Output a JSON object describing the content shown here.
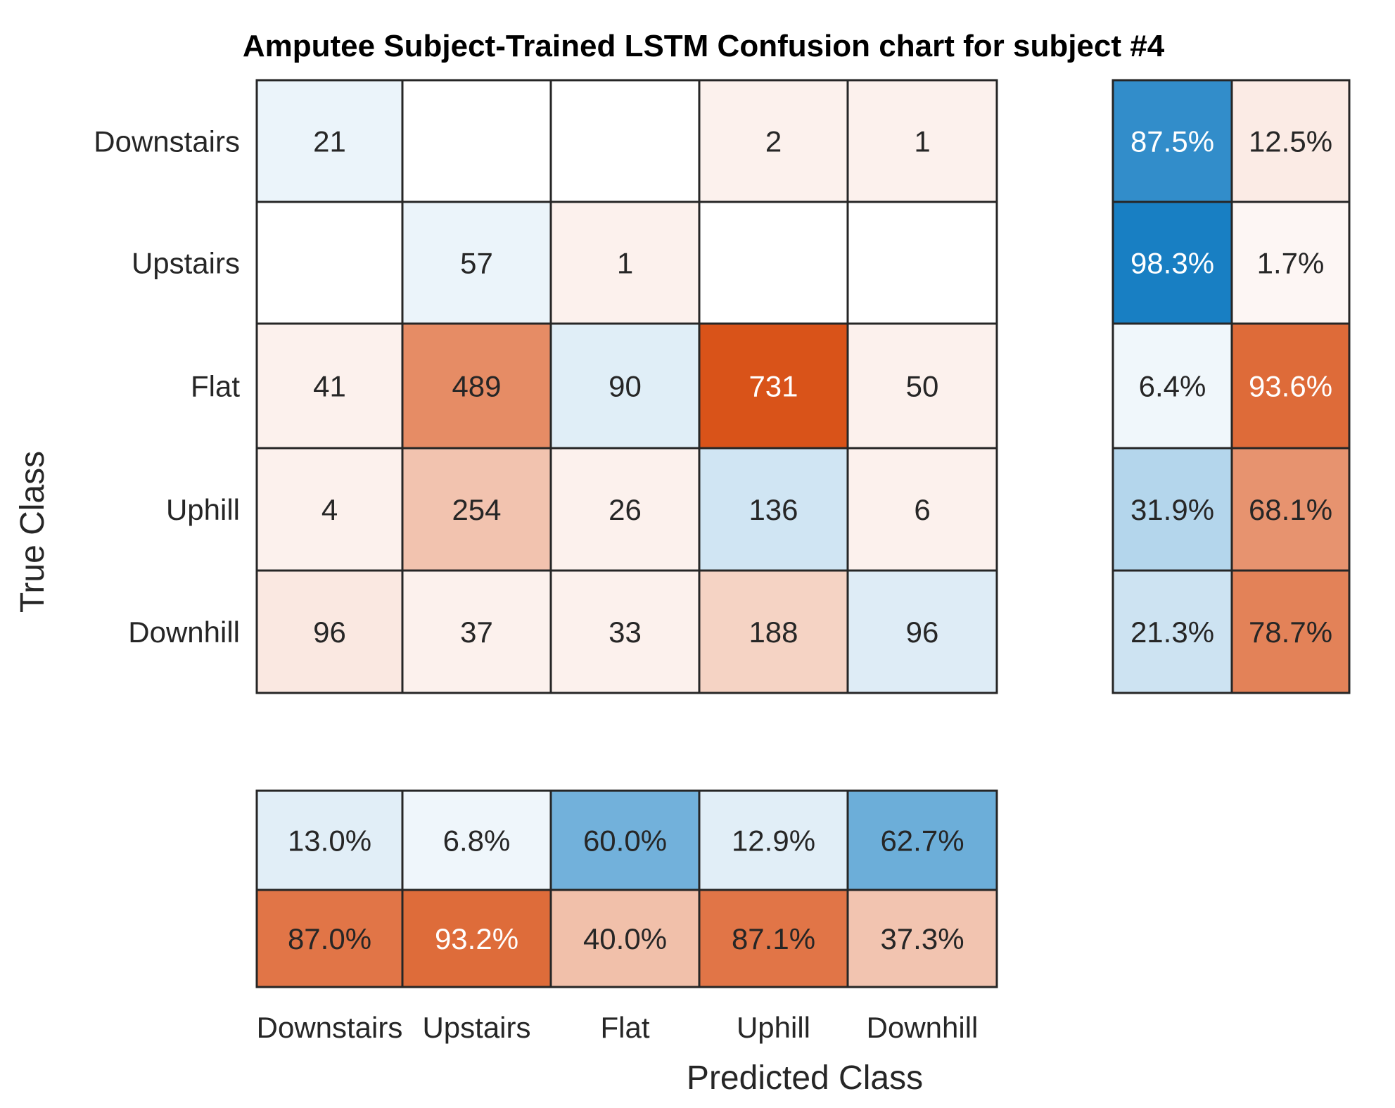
{
  "chart_data": {
    "type": "heatmap",
    "title": "Amputee Subject-Trained LSTM Confusion chart for subject #4",
    "xlabel": "Predicted Class",
    "ylabel": "True Class",
    "classes": [
      "Downstairs",
      "Upstairs",
      "Flat",
      "Uphill",
      "Downhill"
    ],
    "matrix": [
      [
        21,
        0,
        0,
        2,
        1
      ],
      [
        0,
        57,
        1,
        0,
        0
      ],
      [
        41,
        489,
        90,
        731,
        50
      ],
      [
        4,
        254,
        26,
        136,
        6
      ],
      [
        96,
        37,
        33,
        188,
        96
      ]
    ],
    "row_summary": [
      [
        "87.5%",
        "12.5%"
      ],
      [
        "98.3%",
        "1.7%"
      ],
      [
        "6.4%",
        "93.6%"
      ],
      [
        "31.9%",
        "68.1%"
      ],
      [
        "21.3%",
        "78.7%"
      ]
    ],
    "column_summary": [
      [
        "13.0%",
        "6.8%",
        "60.0%",
        "12.9%",
        "62.7%"
      ],
      [
        "87.0%",
        "93.2%",
        "40.0%",
        "87.1%",
        "37.3%"
      ]
    ],
    "colors": {
      "correct": "#0072BD",
      "incorrect": "#D95319",
      "grid": "#262626"
    }
  }
}
